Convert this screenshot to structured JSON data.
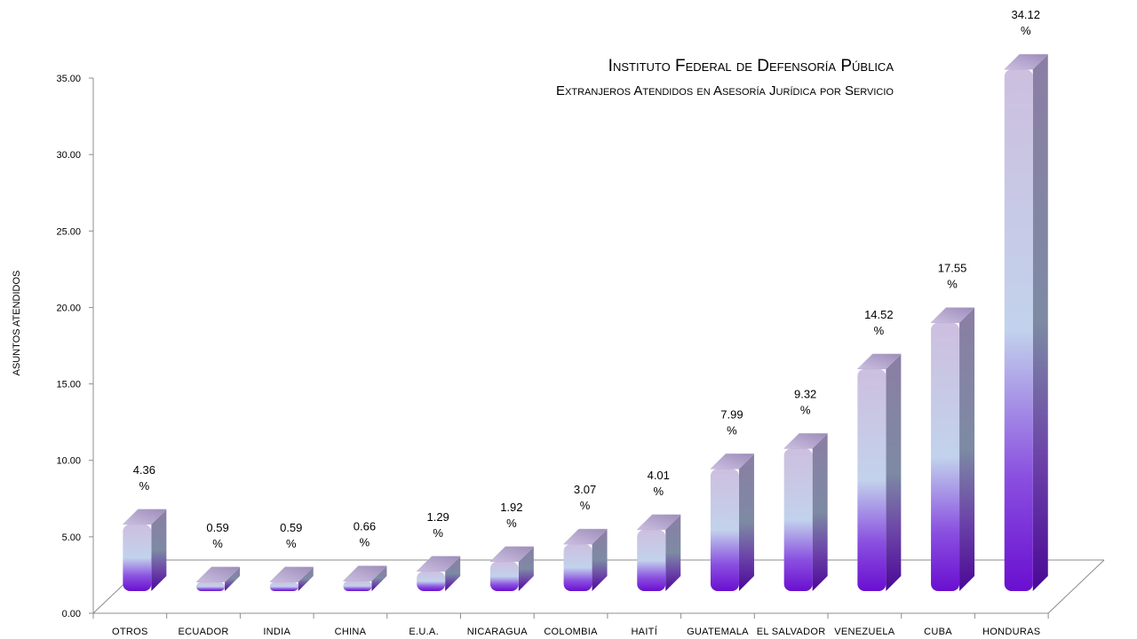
{
  "chart_data": {
    "type": "bar",
    "title": "Instituto Federal de Defensoría Pública",
    "subtitle": "Extranjeros Atendidos en Asesoría Jurídica por Servicio",
    "xlabel": "",
    "ylabel": "ASUNTOS ATENDIDOS",
    "ylim": [
      0,
      35
    ],
    "yticks": [
      "0.00",
      "5.00",
      "10.00",
      "15.00",
      "20.00",
      "25.00",
      "30.00",
      "35.00"
    ],
    "categories": [
      "OTROS",
      "ECUADOR",
      "INDIA",
      "CHINA",
      "E.U.A.",
      "NICARAGUA",
      "COLOMBIA",
      "HAITÍ",
      "GUATEMALA",
      "EL SALVADOR",
      "VENEZUELA",
      "CUBA",
      "HONDURAS"
    ],
    "values": [
      4.36,
      0.59,
      0.59,
      0.66,
      1.29,
      1.92,
      3.07,
      4.01,
      7.99,
      9.32,
      14.52,
      17.55,
      34.12
    ],
    "data_labels": [
      "4.36 %",
      "0.59 %",
      "0.59 %",
      "0.66 %",
      "1.29 %",
      "1.92 %",
      "3.07 %",
      "4.01 %",
      "7.99 %",
      "9.32 %",
      "14.52 %",
      "17.55 %",
      "34.12 %"
    ],
    "grid": false,
    "legend": "none",
    "colors": {
      "bar_top": "#c9bcdc",
      "bar_mid": "#c2d2ec",
      "bar_base": "#6a0fd0",
      "bar_cap": "#a898c2",
      "bar_side": "#7a6c90",
      "axis": "#8c8c8c"
    }
  }
}
